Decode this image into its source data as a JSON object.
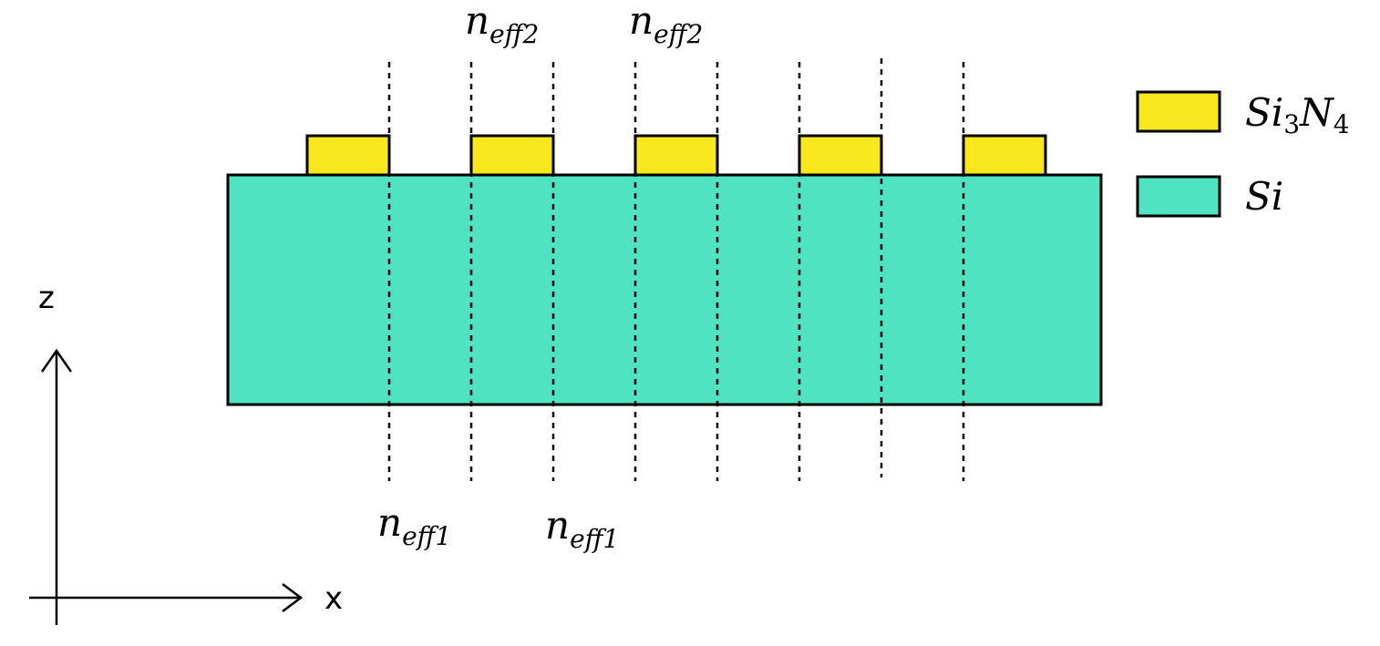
{
  "colors": {
    "substrate": "#50E3C2",
    "grating": "#F8E71C",
    "outline": "#000000",
    "background": "#FFFFFF"
  },
  "legend": {
    "items": [
      {
        "id": "si3n4",
        "base": "Si",
        "sub1": "3",
        "mid": "N",
        "sub2": "4",
        "color_key": "grating"
      },
      {
        "id": "si",
        "base": "Si",
        "color_key": "substrate"
      }
    ]
  },
  "labels": {
    "top": [
      {
        "base": "n",
        "sub": "eff2"
      },
      {
        "base": "n",
        "sub": "eff2"
      }
    ],
    "bottom": [
      {
        "base": "n",
        "sub": "eff1"
      },
      {
        "base": "n",
        "sub": "eff1"
      }
    ]
  },
  "axes": {
    "x_label": "x",
    "z_label": "z"
  },
  "structure": {
    "grating_period_count": 5
  }
}
